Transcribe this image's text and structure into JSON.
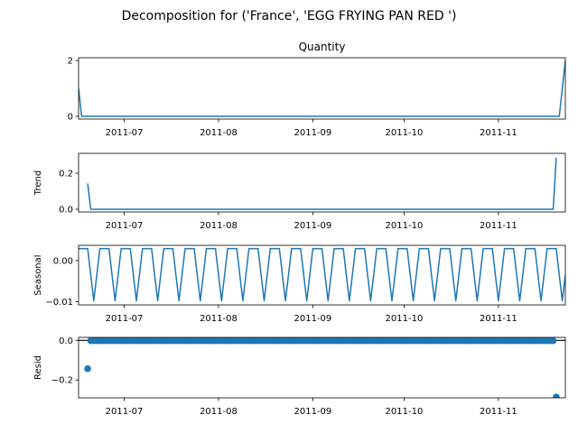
{
  "chart_data": {
    "type": "line",
    "suptitle": "Decomposition for ('France', 'EGG FRYING PAN RED ')",
    "colors": {
      "line": "#1f77b4",
      "axes": "#000000"
    },
    "x_tick_labels": [
      "2011-07",
      "2011-08",
      "2011-09",
      "2011-10",
      "2011-11"
    ],
    "x_ticks_days": [
      15,
      46,
      77,
      107,
      138
    ],
    "x_range_days": [
      0,
      160
    ],
    "x_start_date": "2011-06-16",
    "panels": [
      {
        "id": "observed",
        "title": "Quantity",
        "ylabel": "",
        "kind": "line",
        "ylim": [
          -0.1,
          2.1
        ],
        "yticks": [
          0,
          2
        ],
        "ytick_labels": [
          "0",
          "2"
        ],
        "points": [
          [
            0,
            1
          ],
          [
            1,
            0
          ],
          [
            158,
            0
          ],
          [
            160,
            2
          ]
        ]
      },
      {
        "id": "trend",
        "title": "",
        "ylabel": "Trend",
        "kind": "line",
        "ylim": [
          -0.015,
          0.31
        ],
        "yticks": [
          0.0,
          0.2
        ],
        "ytick_labels": [
          "0.0",
          "0.2"
        ],
        "points": [
          [
            3,
            0.143
          ],
          [
            4,
            0
          ],
          [
            156,
            0
          ],
          [
            157,
            0.286
          ]
        ]
      },
      {
        "id": "seasonal",
        "title": "",
        "ylabel": "Seasonal",
        "kind": "seasonal",
        "ylim": [
          -0.0108,
          0.0037
        ],
        "yticks": [
          0.0,
          -0.01
        ],
        "ytick_labels": [
          "0.00",
          "−0.01"
        ],
        "period": 7,
        "pattern": [
          0.0029,
          0.0029,
          0.0029,
          0.0029,
          -0.0035,
          -0.0098,
          -0.0035
        ],
        "x_from": 0,
        "x_to": 160
      },
      {
        "id": "resid",
        "title": "",
        "ylabel": "Resid",
        "kind": "scatter",
        "ylim": [
          -0.29,
          0.015
        ],
        "yticks": [
          0.0,
          -0.2
        ],
        "ytick_labels": [
          "0.0",
          "−0.2"
        ],
        "zero_line": true,
        "x_from": 4,
        "x_to": 156,
        "baseline": -0.002,
        "special_points": [
          [
            3,
            -0.143
          ],
          [
            157,
            -0.286
          ]
        ]
      }
    ]
  }
}
